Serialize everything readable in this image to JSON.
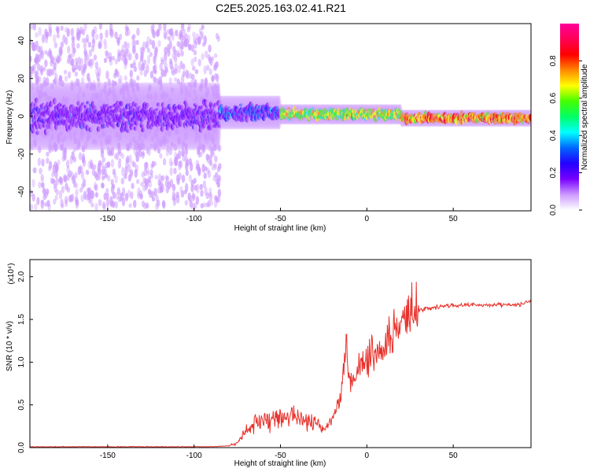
{
  "title": "C2E5.2025.163.02.41.R21",
  "colors": {
    "snr_line": "#e8302a",
    "colorbar": [
      "#ffffff",
      "#cc99ff",
      "#7700ff",
      "#2200ff",
      "#0066ff",
      "#00ffff",
      "#00ff66",
      "#44ff00",
      "#ffff00",
      "#ff8800",
      "#ff0000",
      "#ff0055",
      "#ff0099"
    ]
  },
  "chart_data": [
    {
      "type": "heatmap",
      "xlabel": "Height of straight line (km)",
      "ylabel": "Frequency (Hz)",
      "xlim": [
        -195,
        95
      ],
      "ylim": [
        -50,
        49
      ],
      "xticks": [
        -150,
        -100,
        -50,
        0,
        50
      ],
      "yticks": [
        -40,
        -20,
        0,
        20,
        40
      ],
      "colorbar": {
        "label": "Normalized spectral amplitude",
        "range": [
          0.0,
          1.0
        ],
        "ticks": [
          0.0,
          0.2,
          0.4,
          0.6,
          0.8
        ]
      },
      "regions": [
        {
          "x_range": [
            -195,
            -85
          ],
          "freq_center": 0,
          "core_halfwidth": 10,
          "scatter_halfwidth": 48,
          "amplitude": 0.1
        },
        {
          "x_range": [
            -85,
            -50
          ],
          "freq_center": 2,
          "core_halfwidth": 5,
          "amplitude": 0.25
        },
        {
          "x_range": [
            -50,
            20
          ],
          "freq_center": 1,
          "core_halfwidth": 3,
          "amplitude": 0.6
        },
        {
          "x_range": [
            20,
            95
          ],
          "freq_center": -1,
          "core_halfwidth": 2.5,
          "amplitude": 0.75
        }
      ]
    },
    {
      "type": "line",
      "xlabel": "Height of straight line (km)",
      "ylabel": "SNR (10 * v/v)",
      "y_multiplier": "(x10⁴)",
      "xlim": [
        -195,
        95
      ],
      "ylim": [
        0.0,
        2.2
      ],
      "xticks": [
        -150,
        -100,
        -50,
        0,
        50
      ],
      "yticks": [
        "0.0",
        "0.5",
        "1.0",
        "1.5",
        "2.0"
      ],
      "series": [
        {
          "x": [
            -195,
            -180,
            -160,
            -140,
            -120,
            -100,
            -90,
            -80,
            -75,
            -70,
            -65,
            -60,
            -55,
            -50,
            -45,
            -40,
            -35,
            -30,
            -25,
            -20,
            -15,
            -12,
            -10,
            -8,
            -5,
            0,
            5,
            10,
            15,
            20,
            25,
            30,
            35,
            40,
            50,
            60,
            70,
            80,
            90,
            95
          ],
          "y": [
            0.01,
            0.01,
            0.01,
            0.01,
            0.01,
            0.01,
            0.01,
            0.02,
            0.05,
            0.2,
            0.3,
            0.3,
            0.35,
            0.35,
            0.35,
            0.35,
            0.35,
            0.3,
            0.2,
            0.35,
            0.6,
            1.2,
            0.8,
            0.75,
            0.95,
            1.05,
            1.1,
            1.2,
            1.35,
            1.45,
            1.55,
            1.6,
            1.63,
            1.65,
            1.66,
            1.67,
            1.67,
            1.67,
            1.68,
            1.72
          ]
        }
      ]
    }
  ]
}
